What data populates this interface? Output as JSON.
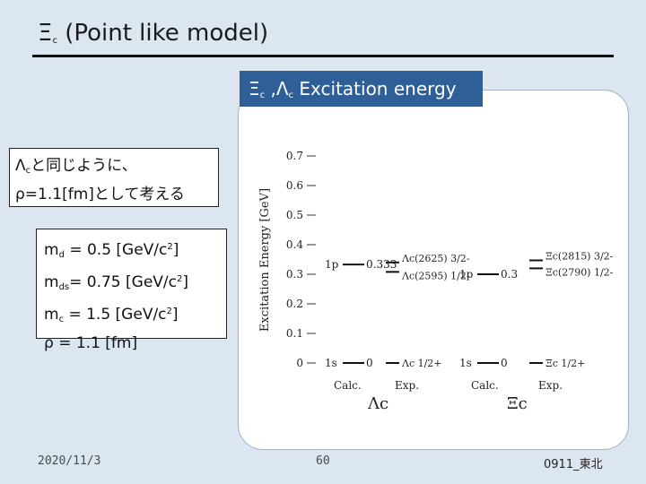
{
  "slide": {
    "title": "Ξc (Point like model)",
    "header": "Ξc ,Λc Excitation energy",
    "note1": {
      "line1": "Λcと同じように、",
      "line2": "ρ=1.1[fm]として考える"
    },
    "params": [
      "md = 0.5 [GeV/c2]",
      "mds= 0.75 [GeV/c2]",
      "mc = 1.5 [GeV/c2]",
      "ρ = 1.1 [fm]"
    ],
    "footer": {
      "date": "2020/11/3",
      "page": "60",
      "code": "0911_東北"
    }
  },
  "chart_data": {
    "type": "level-diagram",
    "ylabel": "Excitation Energy [GeV]",
    "ylim": [
      0,
      0.7
    ],
    "yticks": [
      0,
      0.1,
      0.2,
      0.3,
      0.4,
      0.5,
      0.6,
      0.7
    ],
    "groups": [
      {
        "name": "Λc",
        "columns": [
          "Calc.",
          "Exp."
        ],
        "calc": [
          {
            "state": "1s",
            "value": 0,
            "label": "1s — 0"
          },
          {
            "state": "1p",
            "value": 0.333,
            "label": "1p — 0.333"
          }
        ],
        "exp": [
          {
            "value": 0,
            "label": "Λc 1/2+"
          },
          {
            "value": 0.308,
            "label": "Λc(2595) 1/2-"
          },
          {
            "value": 0.34,
            "label": "Λc(2625) 3/2-"
          }
        ]
      },
      {
        "name": "Ξc",
        "columns": [
          "Calc.",
          "Exp."
        ],
        "calc": [
          {
            "state": "1s",
            "value": 0,
            "label": "1s — 0"
          },
          {
            "state": "1p",
            "value": 0.3,
            "label": "1p — 0.30"
          }
        ],
        "exp": [
          {
            "value": 0,
            "label": "Ξc 1/2+"
          },
          {
            "value": 0.32,
            "label": "Ξc(2790) 1/2-"
          },
          {
            "value": 0.347,
            "label": "Ξc(2815) 3/2-"
          }
        ]
      }
    ]
  }
}
